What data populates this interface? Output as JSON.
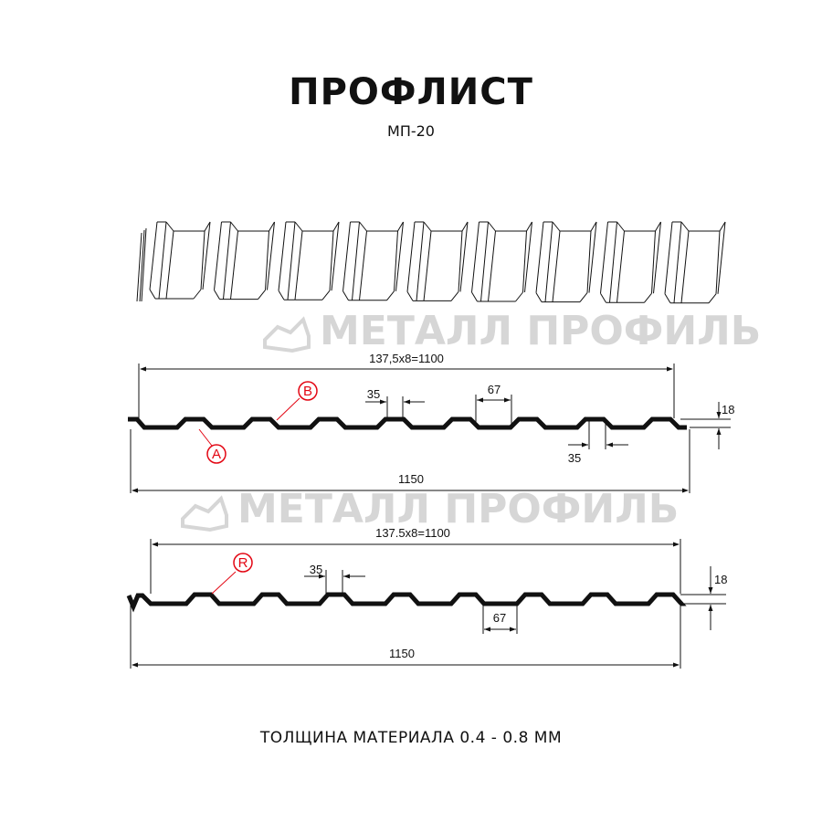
{
  "header": {
    "title": "ПРОФЛИСТ",
    "subtitle": "МП-20"
  },
  "watermark": {
    "text": "МЕТАЛЛ ПРОФИЛЬ"
  },
  "profile_a": {
    "pitch_label": "137,5x8=1100",
    "total_width_label": "1150",
    "top_width_label": "35",
    "bottom_width_label": "67",
    "bottom_top_width_label": "35",
    "height_label": "18",
    "marker_a": "A",
    "marker_b": "B"
  },
  "profile_r": {
    "pitch_label": "137.5x8=1100",
    "total_width_label": "1150",
    "top_width_label": "35",
    "bottom_width_label": "67",
    "height_label": "18",
    "marker_r": "R"
  },
  "footer": {
    "thickness": "ТОЛЩИНА МАТЕРИАЛА 0.4 - 0.8 ММ"
  },
  "colors": {
    "line": "#111111",
    "marker": "#e30613",
    "watermark": "#d6d6d6"
  }
}
